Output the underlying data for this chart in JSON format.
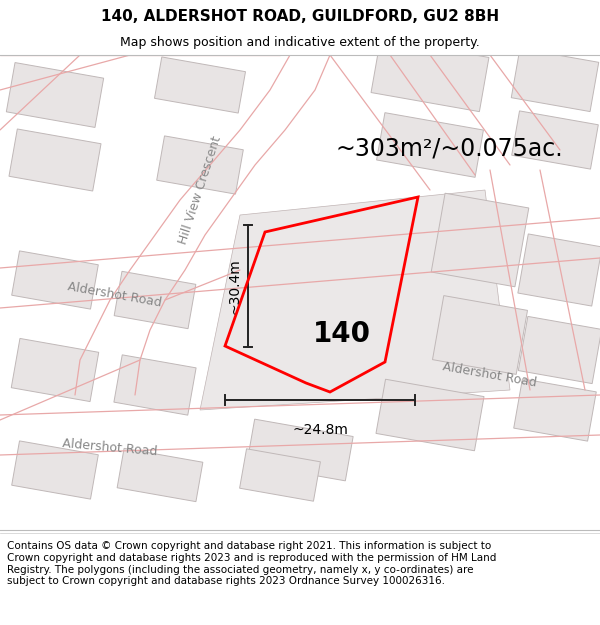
{
  "title_line1": "140, ALDERSHOT ROAD, GUILDFORD, GU2 8BH",
  "title_line2": "Map shows position and indicative extent of the property.",
  "area_label": "~303m²/~0.075ac.",
  "property_number": "140",
  "dim_vertical": "~30.4m",
  "dim_horizontal": "~24.8m",
  "road_label_hill": "Hill View Crescent",
  "road_label_ald1": "Aldershot Road",
  "road_label_ald2": "Aldershot Road",
  "road_label_ald3": "Aldershot Road",
  "footer_text": "Contains OS data © Crown copyright and database right 2021. This information is subject to Crown copyright and database rights 2023 and is reproduced with the permission of HM Land Registry. The polygons (including the associated geometry, namely x, y co-ordinates) are subject to Crown copyright and database rights 2023 Ordnance Survey 100026316.",
  "map_bg": "#f9f7f7",
  "building_fill": "#e8e4e4",
  "building_edge": "#c0b8b8",
  "road_line_color": "#e8a8a8",
  "property_color": "red",
  "title_fontsize": 11,
  "subtitle_fontsize": 9,
  "area_fontsize": 17,
  "property_num_fontsize": 20,
  "dim_fontsize": 10,
  "road_fontsize": 9,
  "footer_fontsize": 7.5
}
